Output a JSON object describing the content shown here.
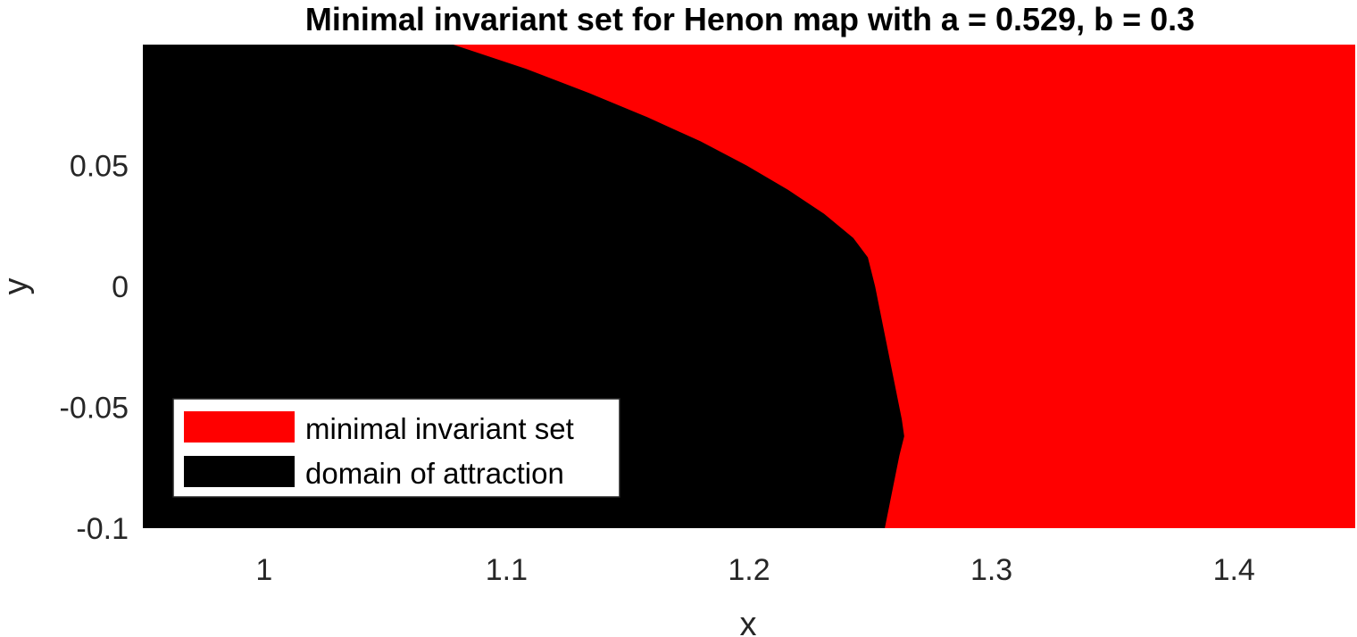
{
  "chart_data": {
    "type": "heatmap",
    "title": "Minimal invariant set for Henon map with a = 0.529, b = 0.3",
    "xlabel": "x",
    "ylabel": "y",
    "xlim": [
      0.95,
      1.45
    ],
    "ylim": [
      -0.1,
      0.1
    ],
    "xticks": [
      1,
      1.1,
      1.2,
      1.3,
      1.4
    ],
    "xtick_labels": [
      "1",
      "1.1",
      "1.2",
      "1.3",
      "1.4"
    ],
    "yticks": [
      -0.1,
      -0.05,
      0,
      0.05
    ],
    "ytick_labels": [
      "-0.1",
      "-0.05",
      "0",
      "0.05"
    ],
    "grid": false,
    "legend_position": "bottom-left",
    "series": [
      {
        "name": "minimal invariant set",
        "color": "#ff0000"
      },
      {
        "name": "domain of attraction",
        "color": "#000000"
      }
    ],
    "boundary": {
      "description_note": "x-position of the border between the domain of attraction (left) and the minimal invariant set (right) as a function of y",
      "points": [
        {
          "y": 0.1,
          "x": 1.078
        },
        {
          "y": 0.09,
          "x": 1.108
        },
        {
          "y": 0.08,
          "x": 1.134
        },
        {
          "y": 0.07,
          "x": 1.158
        },
        {
          "y": 0.06,
          "x": 1.18
        },
        {
          "y": 0.05,
          "x": 1.199
        },
        {
          "y": 0.04,
          "x": 1.216
        },
        {
          "y": 0.03,
          "x": 1.231
        },
        {
          "y": 0.02,
          "x": 1.243
        },
        {
          "y": 0.012,
          "x": 1.249
        },
        {
          "y": 0.0,
          "x": 1.252
        },
        {
          "y": -0.02,
          "x": 1.256
        },
        {
          "y": -0.04,
          "x": 1.26
        },
        {
          "y": -0.055,
          "x": 1.263
        },
        {
          "y": -0.062,
          "x": 1.264
        },
        {
          "y": -0.07,
          "x": 1.262
        },
        {
          "y": -0.08,
          "x": 1.26
        },
        {
          "y": -0.09,
          "x": 1.258
        },
        {
          "y": -0.1,
          "x": 1.256
        }
      ]
    }
  }
}
